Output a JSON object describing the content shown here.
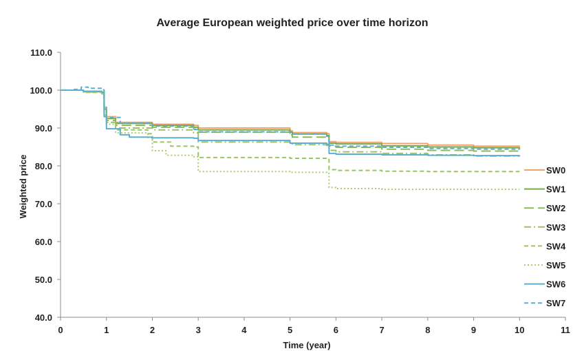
{
  "chart_data": {
    "type": "line",
    "title": "Average European weighted price over time horizon",
    "xlabel": "Time (year)",
    "ylabel": "Weighted price",
    "xlim": [
      0,
      11
    ],
    "ylim": [
      40.0,
      110.0
    ],
    "x_ticks": [
      "0",
      "1",
      "2",
      "3",
      "4",
      "5",
      "6",
      "7",
      "8",
      "9",
      "10",
      "11"
    ],
    "y_ticks": [
      "40.0",
      "50.0",
      "60.0",
      "70.0",
      "80.0",
      "90.0",
      "100.0",
      "110.0"
    ],
    "grid": false,
    "legend_position": "right",
    "series": [
      {
        "name": "SW0",
        "color": "#F4A46A",
        "dash": "solid",
        "x": [
          0,
          0.5,
          0.9,
          0.95,
          1.0,
          1.2,
          2.0,
          2.9,
          3.0,
          5.0,
          5.05,
          5.8,
          5.85,
          6.0,
          7.0,
          8.0,
          9.0,
          10.0
        ],
        "y": [
          100.0,
          99.7,
          99.4,
          95.5,
          93.0,
          91.5,
          91.0,
          90.7,
          90.0,
          89.3,
          88.8,
          88.5,
          86.4,
          86.2,
          85.9,
          85.5,
          85.2,
          85.1
        ]
      },
      {
        "name": "SW1",
        "color": "#77A84A",
        "dash": "solid",
        "x": [
          0,
          0.5,
          0.9,
          0.95,
          1.0,
          1.2,
          2.0,
          2.9,
          3.0,
          5.0,
          5.05,
          5.8,
          5.85,
          6.0,
          7.0,
          8.0,
          9.0,
          10.0
        ],
        "y": [
          100.0,
          99.6,
          99.3,
          95.0,
          92.5,
          91.2,
          90.7,
          90.2,
          89.5,
          88.9,
          88.4,
          88.0,
          86.0,
          85.8,
          85.3,
          85.0,
          84.8,
          84.6
        ]
      },
      {
        "name": "SW2",
        "color": "#8DB85A",
        "dash": "longdash",
        "x": [
          0,
          0.5,
          0.9,
          0.95,
          1.0,
          1.2,
          2.0,
          2.9,
          3.0,
          5.0,
          5.05,
          5.8,
          5.85,
          6.0,
          7.0,
          8.0,
          9.0,
          10.0
        ],
        "y": [
          100.0,
          99.6,
          99.2,
          94.5,
          92.0,
          90.7,
          90.2,
          89.7,
          88.9,
          88.2,
          87.6,
          87.2,
          85.2,
          84.9,
          84.4,
          84.1,
          83.9,
          83.7
        ]
      },
      {
        "name": "SW3",
        "color": "#9BBF6A",
        "dash": "dashdot",
        "x": [
          0,
          0.5,
          0.9,
          0.95,
          1.0,
          1.2,
          2.0,
          2.9,
          3.0,
          5.0,
          5.05,
          5.8,
          5.85,
          6.0,
          7.0,
          8.0,
          9.0,
          10.0
        ],
        "y": [
          100.0,
          99.5,
          99.1,
          94.0,
          91.5,
          90.0,
          89.5,
          88.7,
          86.3,
          85.9,
          85.6,
          85.4,
          84.1,
          83.7,
          83.3,
          82.9,
          82.6,
          82.5
        ]
      },
      {
        "name": "SW4",
        "color": "#9CC463",
        "dash": "dash",
        "x": [
          0,
          0.5,
          0.9,
          0.95,
          1.0,
          1.2,
          1.9,
          2.0,
          2.4,
          2.9,
          3.0,
          5.0,
          5.8,
          5.85,
          6.0,
          7.0,
          8.0,
          9.0,
          10.0
        ],
        "y": [
          100.0,
          99.4,
          99.0,
          93.5,
          91.5,
          89.5,
          88.5,
          86.3,
          85.2,
          85.0,
          82.2,
          82.0,
          81.7,
          79.0,
          78.8,
          78.6,
          78.5,
          78.5,
          78.5
        ]
      },
      {
        "name": "SW5",
        "color": "#A9CB6E",
        "dash": "dot",
        "x": [
          0,
          0.5,
          0.9,
          0.95,
          1.0,
          1.2,
          1.9,
          2.0,
          2.3,
          2.9,
          3.0,
          5.0,
          5.8,
          5.85,
          6.0,
          7.0,
          8.0,
          9.0,
          10.0
        ],
        "y": [
          100.0,
          99.4,
          99.0,
          93.2,
          91.0,
          88.7,
          87.5,
          84.0,
          82.8,
          82.4,
          78.5,
          78.3,
          78.0,
          74.3,
          74.0,
          73.8,
          73.8,
          73.8,
          73.8
        ]
      },
      {
        "name": "SW6",
        "color": "#5AAFD0",
        "dash": "solid",
        "x": [
          0,
          0.5,
          0.9,
          0.95,
          1.0,
          1.3,
          1.5,
          2.0,
          2.9,
          3.0,
          5.0,
          5.8,
          5.85,
          6.0,
          7.0,
          8.0,
          9.0,
          10.0
        ],
        "y": [
          100.0,
          99.7,
          99.5,
          93.0,
          89.8,
          88.2,
          87.6,
          87.4,
          87.3,
          86.7,
          86.0,
          85.7,
          83.3,
          83.1,
          82.9,
          82.8,
          82.7,
          82.6
        ]
      },
      {
        "name": "SW7",
        "color": "#5AAFD0",
        "dash": "dash",
        "x": [
          0,
          0.3,
          0.45,
          0.6,
          0.9,
          0.95,
          1.0,
          1.3,
          2.0,
          2.9,
          3.0,
          5.0,
          5.8,
          5.85,
          6.0,
          7.0,
          8.0,
          9.0,
          10.0
        ],
        "y": [
          100.0,
          100.2,
          100.8,
          100.5,
          100.1,
          95.5,
          92.8,
          91.3,
          90.5,
          89.6,
          89.0,
          88.4,
          87.8,
          85.5,
          85.2,
          84.9,
          84.6,
          84.4,
          84.3
        ]
      }
    ]
  }
}
